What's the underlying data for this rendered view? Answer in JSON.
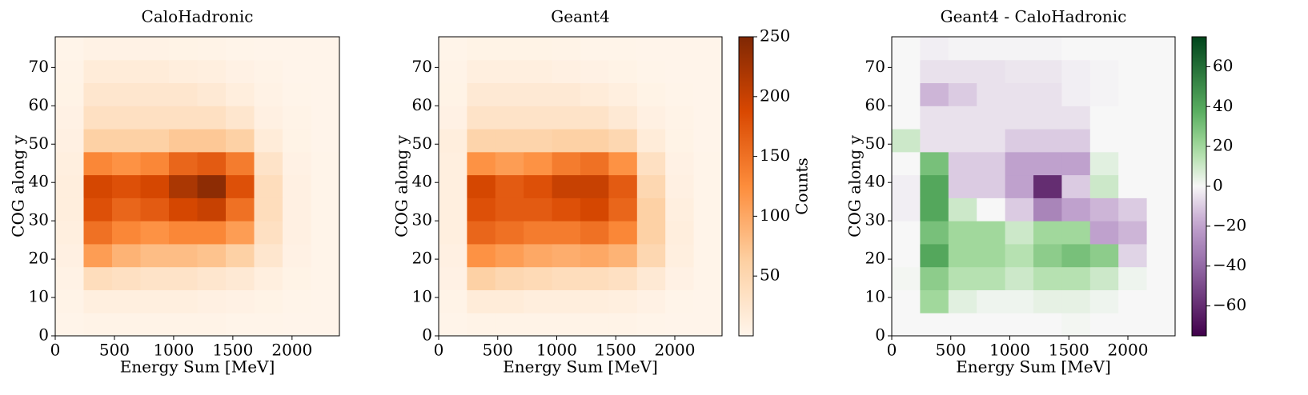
{
  "chart_data": [
    {
      "type": "heatmap",
      "title": "CaloHadronic",
      "xlabel": "Energy Sum [MeV]",
      "ylabel": "COG along y",
      "x_bins": [
        0,
        240,
        480,
        720,
        960,
        1200,
        1440,
        1680,
        1920,
        2160,
        2400
      ],
      "y_bins": [
        0,
        6,
        12,
        18,
        24,
        30,
        36,
        42,
        48,
        54,
        60,
        66,
        72,
        78
      ],
      "xlim": [
        0,
        2400
      ],
      "ylim": [
        0,
        78
      ],
      "xticks": [
        0,
        500,
        1000,
        1500,
        2000
      ],
      "yticks": [
        0,
        10,
        20,
        30,
        40,
        50,
        60,
        70
      ],
      "colormap": "Oranges",
      "clim": [
        0,
        250
      ],
      "z": [
        [
          2,
          3,
          3,
          3,
          3,
          3,
          2,
          2,
          1,
          1
        ],
        [
          3,
          10,
          10,
          10,
          10,
          8,
          6,
          4,
          2,
          1
        ],
        [
          5,
          40,
          35,
          30,
          30,
          25,
          20,
          10,
          4,
          2
        ],
        [
          8,
          110,
          90,
          80,
          80,
          75,
          60,
          25,
          6,
          2
        ],
        [
          10,
          150,
          130,
          120,
          130,
          130,
          110,
          35,
          8,
          2
        ],
        [
          12,
          180,
          160,
          170,
          190,
          200,
          150,
          40,
          8,
          2
        ],
        [
          12,
          190,
          180,
          190,
          220,
          240,
          180,
          40,
          8,
          2
        ],
        [
          10,
          130,
          120,
          130,
          160,
          170,
          140,
          30,
          6,
          2
        ],
        [
          8,
          60,
          60,
          60,
          70,
          70,
          60,
          15,
          4,
          1
        ],
        [
          6,
          35,
          35,
          35,
          35,
          35,
          25,
          8,
          3,
          1
        ],
        [
          4,
          25,
          25,
          25,
          25,
          20,
          12,
          5,
          2,
          1
        ],
        [
          3,
          15,
          15,
          15,
          12,
          10,
          6,
          3,
          1,
          1
        ],
        [
          2,
          5,
          5,
          5,
          4,
          3,
          2,
          1,
          1,
          1
        ]
      ]
    },
    {
      "type": "heatmap",
      "title": "Geant4",
      "xlabel": "Energy Sum [MeV]",
      "ylabel": "COG along y",
      "x_bins": [
        0,
        240,
        480,
        720,
        960,
        1200,
        1440,
        1680,
        1920,
        2160,
        2400
      ],
      "y_bins": [
        0,
        6,
        12,
        18,
        24,
        30,
        36,
        42,
        48,
        54,
        60,
        66,
        72,
        78
      ],
      "xlim": [
        0,
        2400
      ],
      "ylim": [
        0,
        78
      ],
      "xticks": [
        0,
        500,
        1000,
        1500,
        2000
      ],
      "yticks": [
        0,
        10,
        20,
        30,
        40,
        50,
        60,
        70
      ],
      "colormap": "Oranges",
      "clim": [
        0,
        250
      ],
      "colorbar": {
        "label": "Counts",
        "ticks": [
          50,
          100,
          150,
          200,
          250
        ]
      },
      "z": [
        [
          2,
          3,
          3,
          3,
          3,
          3,
          3,
          2,
          1,
          1
        ],
        [
          3,
          15,
          15,
          12,
          12,
          12,
          10,
          6,
          2,
          1
        ],
        [
          6,
          60,
          50,
          45,
          40,
          40,
          35,
          20,
          6,
          2
        ],
        [
          8,
          120,
          110,
          100,
          95,
          100,
          90,
          50,
          10,
          2
        ],
        [
          10,
          160,
          150,
          140,
          140,
          150,
          130,
          60,
          12,
          2
        ],
        [
          10,
          180,
          170,
          170,
          180,
          190,
          160,
          60,
          10,
          2
        ],
        [
          10,
          190,
          170,
          180,
          200,
          200,
          170,
          50,
          8,
          2
        ],
        [
          10,
          120,
          110,
          120,
          140,
          150,
          120,
          35,
          6,
          2
        ],
        [
          12,
          55,
          55,
          55,
          60,
          60,
          50,
          15,
          4,
          1
        ],
        [
          6,
          30,
          30,
          30,
          30,
          30,
          20,
          8,
          3,
          1
        ],
        [
          4,
          20,
          20,
          20,
          20,
          15,
          10,
          4,
          2,
          1
        ],
        [
          3,
          10,
          10,
          10,
          8,
          6,
          4,
          2,
          1,
          1
        ],
        [
          2,
          4,
          4,
          4,
          3,
          2,
          2,
          1,
          1,
          1
        ]
      ]
    },
    {
      "type": "heatmap",
      "title": "Geant4 - CaloHadronic",
      "xlabel": "Energy Sum [MeV]",
      "ylabel": "COG along y",
      "x_bins": [
        0,
        240,
        480,
        720,
        960,
        1200,
        1440,
        1680,
        1920,
        2160,
        2400
      ],
      "y_bins": [
        0,
        6,
        12,
        18,
        24,
        30,
        36,
        42,
        48,
        54,
        60,
        66,
        72,
        78
      ],
      "xlim": [
        0,
        2400
      ],
      "ylim": [
        0,
        78
      ],
      "xticks": [
        0,
        500,
        1000,
        1500,
        2000
      ],
      "yticks": [
        0,
        10,
        20,
        30,
        40,
        50,
        60,
        70
      ],
      "colormap": "PRGn",
      "clim": [
        -75,
        75
      ],
      "colorbar": {
        "ticks": [
          {
            "value": -60,
            "label": "−60"
          },
          {
            "value": -40,
            "label": "−40"
          },
          {
            "value": -20,
            "label": "−20"
          },
          0,
          20,
          40,
          60
        ]
      },
      "z": [
        [
          0,
          0,
          0,
          0,
          0,
          0,
          1,
          0,
          0,
          0
        ],
        [
          0,
          20,
          5,
          2,
          2,
          4,
          4,
          2,
          0,
          0
        ],
        [
          1,
          25,
          15,
          15,
          10,
          15,
          15,
          10,
          2,
          0
        ],
        [
          0,
          40,
          20,
          20,
          15,
          25,
          30,
          25,
          -8,
          0
        ],
        [
          0,
          30,
          20,
          20,
          10,
          20,
          20,
          -20,
          -15,
          0
        ],
        [
          -2,
          40,
          10,
          0,
          -10,
          -30,
          -20,
          -15,
          -10,
          0
        ],
        [
          -2,
          40,
          -10,
          -10,
          -20,
          -60,
          -10,
          10,
          0,
          0
        ],
        [
          0,
          30,
          -10,
          -10,
          -20,
          -20,
          -20,
          5,
          0,
          0
        ],
        [
          10,
          -5,
          -5,
          -5,
          -10,
          -10,
          -10,
          0,
          0,
          0
        ],
        [
          0,
          -5,
          -5,
          -5,
          -5,
          -5,
          -5,
          0,
          0,
          0
        ],
        [
          0,
          -15,
          -10,
          -5,
          -5,
          -5,
          -2,
          -1,
          0,
          0
        ],
        [
          0,
          -5,
          -5,
          -5,
          -4,
          -4,
          -2,
          -1,
          0,
          0
        ],
        [
          0,
          -2,
          -1,
          -1,
          -1,
          -1,
          0,
          0,
          0,
          0
        ]
      ]
    }
  ]
}
